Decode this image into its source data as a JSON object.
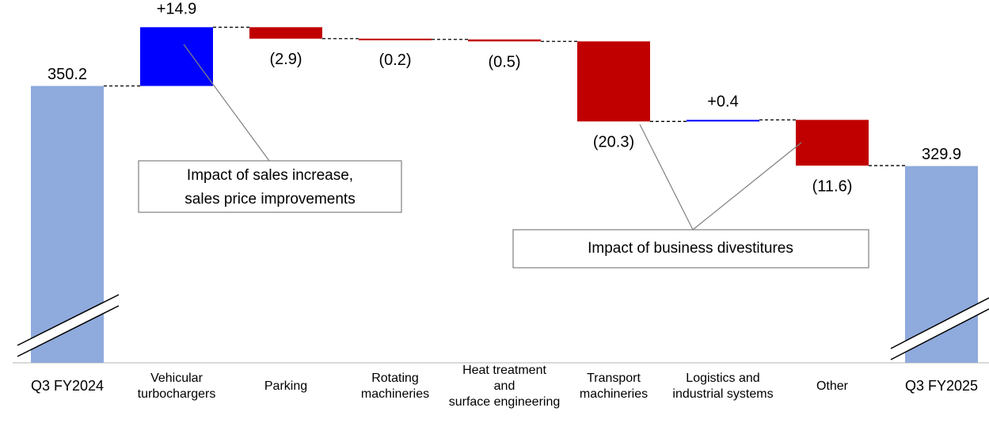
{
  "chart_data": {
    "type": "waterfall",
    "categories": [
      "Q3 FY2024",
      "Vehicular\nturbochargers",
      "Parking",
      "Rotating\nmachineries",
      "Heat treatment\nand\nsurface engineering",
      "Transport\nmachineries",
      "Logistics and\nindustrial systems",
      "Other",
      "Q3 FY2025"
    ],
    "values": [
      350.2,
      14.9,
      -2.9,
      -0.2,
      -0.5,
      -20.3,
      0.4,
      -11.6,
      329.9
    ],
    "value_labels": [
      "350.2",
      "+14.9",
      "(2.9)",
      "(0.2)",
      "(0.5)",
      "(20.3)",
      "+0.4",
      "(11.6)",
      "329.9"
    ],
    "measures": [
      "absolute",
      "relative",
      "relative",
      "relative",
      "relative",
      "relative",
      "relative",
      "relative",
      "absolute"
    ],
    "colors": {
      "total": "#8faadc",
      "increase": "#0000ff",
      "decrease": "#c00000"
    },
    "ylim": [
      280,
      372
    ],
    "broken_axis": true,
    "annotations": [
      "Impact of sales increase,\nsales price improvements",
      "Impact of business divestitures"
    ]
  }
}
